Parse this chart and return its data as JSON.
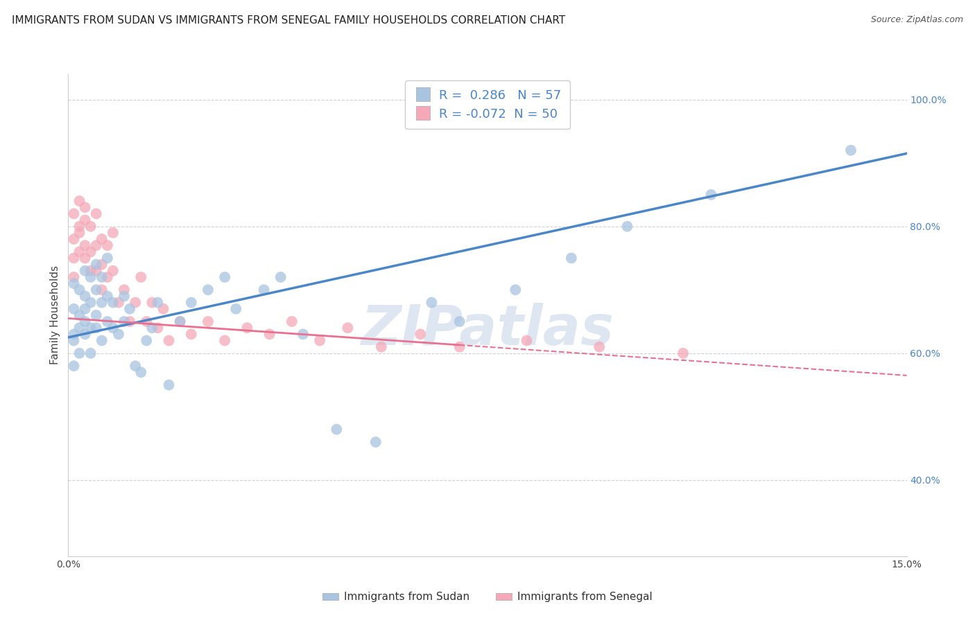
{
  "title": "IMMIGRANTS FROM SUDAN VS IMMIGRANTS FROM SENEGAL FAMILY HOUSEHOLDS CORRELATION CHART",
  "source": "Source: ZipAtlas.com",
  "ylabel": "Family Households",
  "xlim": [
    0.0,
    0.15
  ],
  "ylim": [
    0.28,
    1.04
  ],
  "y_ticks": [
    0.4,
    0.6,
    0.8,
    1.0
  ],
  "y_tick_labels": [
    "40.0%",
    "60.0%",
    "80.0%",
    "100.0%"
  ],
  "sudan_color": "#a8c4e0",
  "senegal_color": "#f4a8b8",
  "sudan_line_color": "#4a86c8",
  "senegal_line_color": "#e87090",
  "R_sudan": 0.286,
  "N_sudan": 57,
  "R_senegal": -0.072,
  "N_senegal": 50,
  "sudan_scatter_x": [
    0.001,
    0.001,
    0.001,
    0.001,
    0.001,
    0.002,
    0.002,
    0.002,
    0.002,
    0.003,
    0.003,
    0.003,
    0.003,
    0.003,
    0.004,
    0.004,
    0.004,
    0.004,
    0.005,
    0.005,
    0.005,
    0.005,
    0.006,
    0.006,
    0.006,
    0.007,
    0.007,
    0.007,
    0.008,
    0.008,
    0.009,
    0.01,
    0.01,
    0.011,
    0.012,
    0.013,
    0.014,
    0.015,
    0.016,
    0.018,
    0.02,
    0.022,
    0.025,
    0.028,
    0.03,
    0.035,
    0.038,
    0.042,
    0.048,
    0.055,
    0.065,
    0.07,
    0.08,
    0.09,
    0.1,
    0.115,
    0.14
  ],
  "sudan_scatter_y": [
    0.63,
    0.67,
    0.71,
    0.62,
    0.58,
    0.66,
    0.7,
    0.64,
    0.6,
    0.65,
    0.69,
    0.63,
    0.73,
    0.67,
    0.64,
    0.68,
    0.72,
    0.6,
    0.66,
    0.7,
    0.64,
    0.74,
    0.62,
    0.68,
    0.72,
    0.65,
    0.69,
    0.75,
    0.64,
    0.68,
    0.63,
    0.65,
    0.69,
    0.67,
    0.58,
    0.57,
    0.62,
    0.64,
    0.68,
    0.55,
    0.65,
    0.68,
    0.7,
    0.72,
    0.67,
    0.7,
    0.72,
    0.63,
    0.48,
    0.46,
    0.68,
    0.65,
    0.7,
    0.75,
    0.8,
    0.85,
    0.92
  ],
  "senegal_scatter_x": [
    0.001,
    0.001,
    0.001,
    0.001,
    0.002,
    0.002,
    0.002,
    0.002,
    0.003,
    0.003,
    0.003,
    0.003,
    0.004,
    0.004,
    0.004,
    0.005,
    0.005,
    0.005,
    0.006,
    0.006,
    0.006,
    0.007,
    0.007,
    0.008,
    0.008,
    0.009,
    0.01,
    0.011,
    0.012,
    0.013,
    0.014,
    0.015,
    0.016,
    0.017,
    0.018,
    0.02,
    0.022,
    0.025,
    0.028,
    0.032,
    0.036,
    0.04,
    0.045,
    0.05,
    0.056,
    0.063,
    0.07,
    0.082,
    0.095,
    0.11
  ],
  "senegal_scatter_y": [
    0.82,
    0.78,
    0.75,
    0.72,
    0.8,
    0.76,
    0.84,
    0.79,
    0.75,
    0.81,
    0.77,
    0.83,
    0.76,
    0.8,
    0.73,
    0.77,
    0.82,
    0.73,
    0.78,
    0.74,
    0.7,
    0.72,
    0.77,
    0.73,
    0.79,
    0.68,
    0.7,
    0.65,
    0.68,
    0.72,
    0.65,
    0.68,
    0.64,
    0.67,
    0.62,
    0.65,
    0.63,
    0.65,
    0.62,
    0.64,
    0.63,
    0.65,
    0.62,
    0.64,
    0.61,
    0.63,
    0.61,
    0.62,
    0.61,
    0.6
  ],
  "watermark": "ZIPatlas",
  "watermark_color": "#c8d8e8",
  "background_color": "#ffffff",
  "grid_color": "#d0d0d0",
  "title_fontsize": 11,
  "axis_label_fontsize": 11,
  "tick_fontsize": 10,
  "legend_fontsize": 13
}
